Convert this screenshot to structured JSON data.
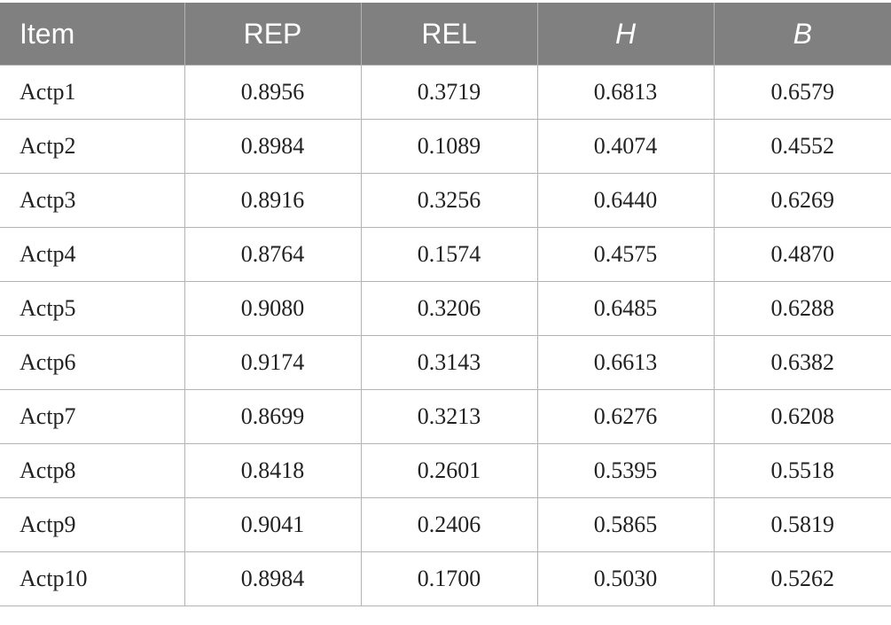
{
  "table": {
    "headers": [
      "Item",
      "REP",
      "REL",
      "H",
      "B"
    ],
    "rows": [
      [
        "Actp1",
        "0.8956",
        "0.3719",
        "0.6813",
        "0.6579"
      ],
      [
        "Actp2",
        "0.8984",
        "0.1089",
        "0.4074",
        "0.4552"
      ],
      [
        "Actp3",
        "0.8916",
        "0.3256",
        "0.6440",
        "0.6269"
      ],
      [
        "Actp4",
        "0.8764",
        "0.1574",
        "0.4575",
        "0.4870"
      ],
      [
        "Actp5",
        "0.9080",
        "0.3206",
        "0.6485",
        "0.6288"
      ],
      [
        "Actp6",
        "0.9174",
        "0.3143",
        "0.6613",
        "0.6382"
      ],
      [
        "Actp7",
        "0.8699",
        "0.3213",
        "0.6276",
        "0.6208"
      ],
      [
        "Actp8",
        "0.8418",
        "0.2601",
        "0.5395",
        "0.5518"
      ],
      [
        "Actp9",
        "0.9041",
        "0.2406",
        "0.5865",
        "0.5819"
      ],
      [
        "Actp10",
        "0.8984",
        "0.1700",
        "0.5030",
        "0.5262"
      ]
    ]
  },
  "colors": {
    "header_background": "#808080",
    "header_text": "#ffffff",
    "grid_lines": "#b3b3b3",
    "body_text": "#222222"
  }
}
